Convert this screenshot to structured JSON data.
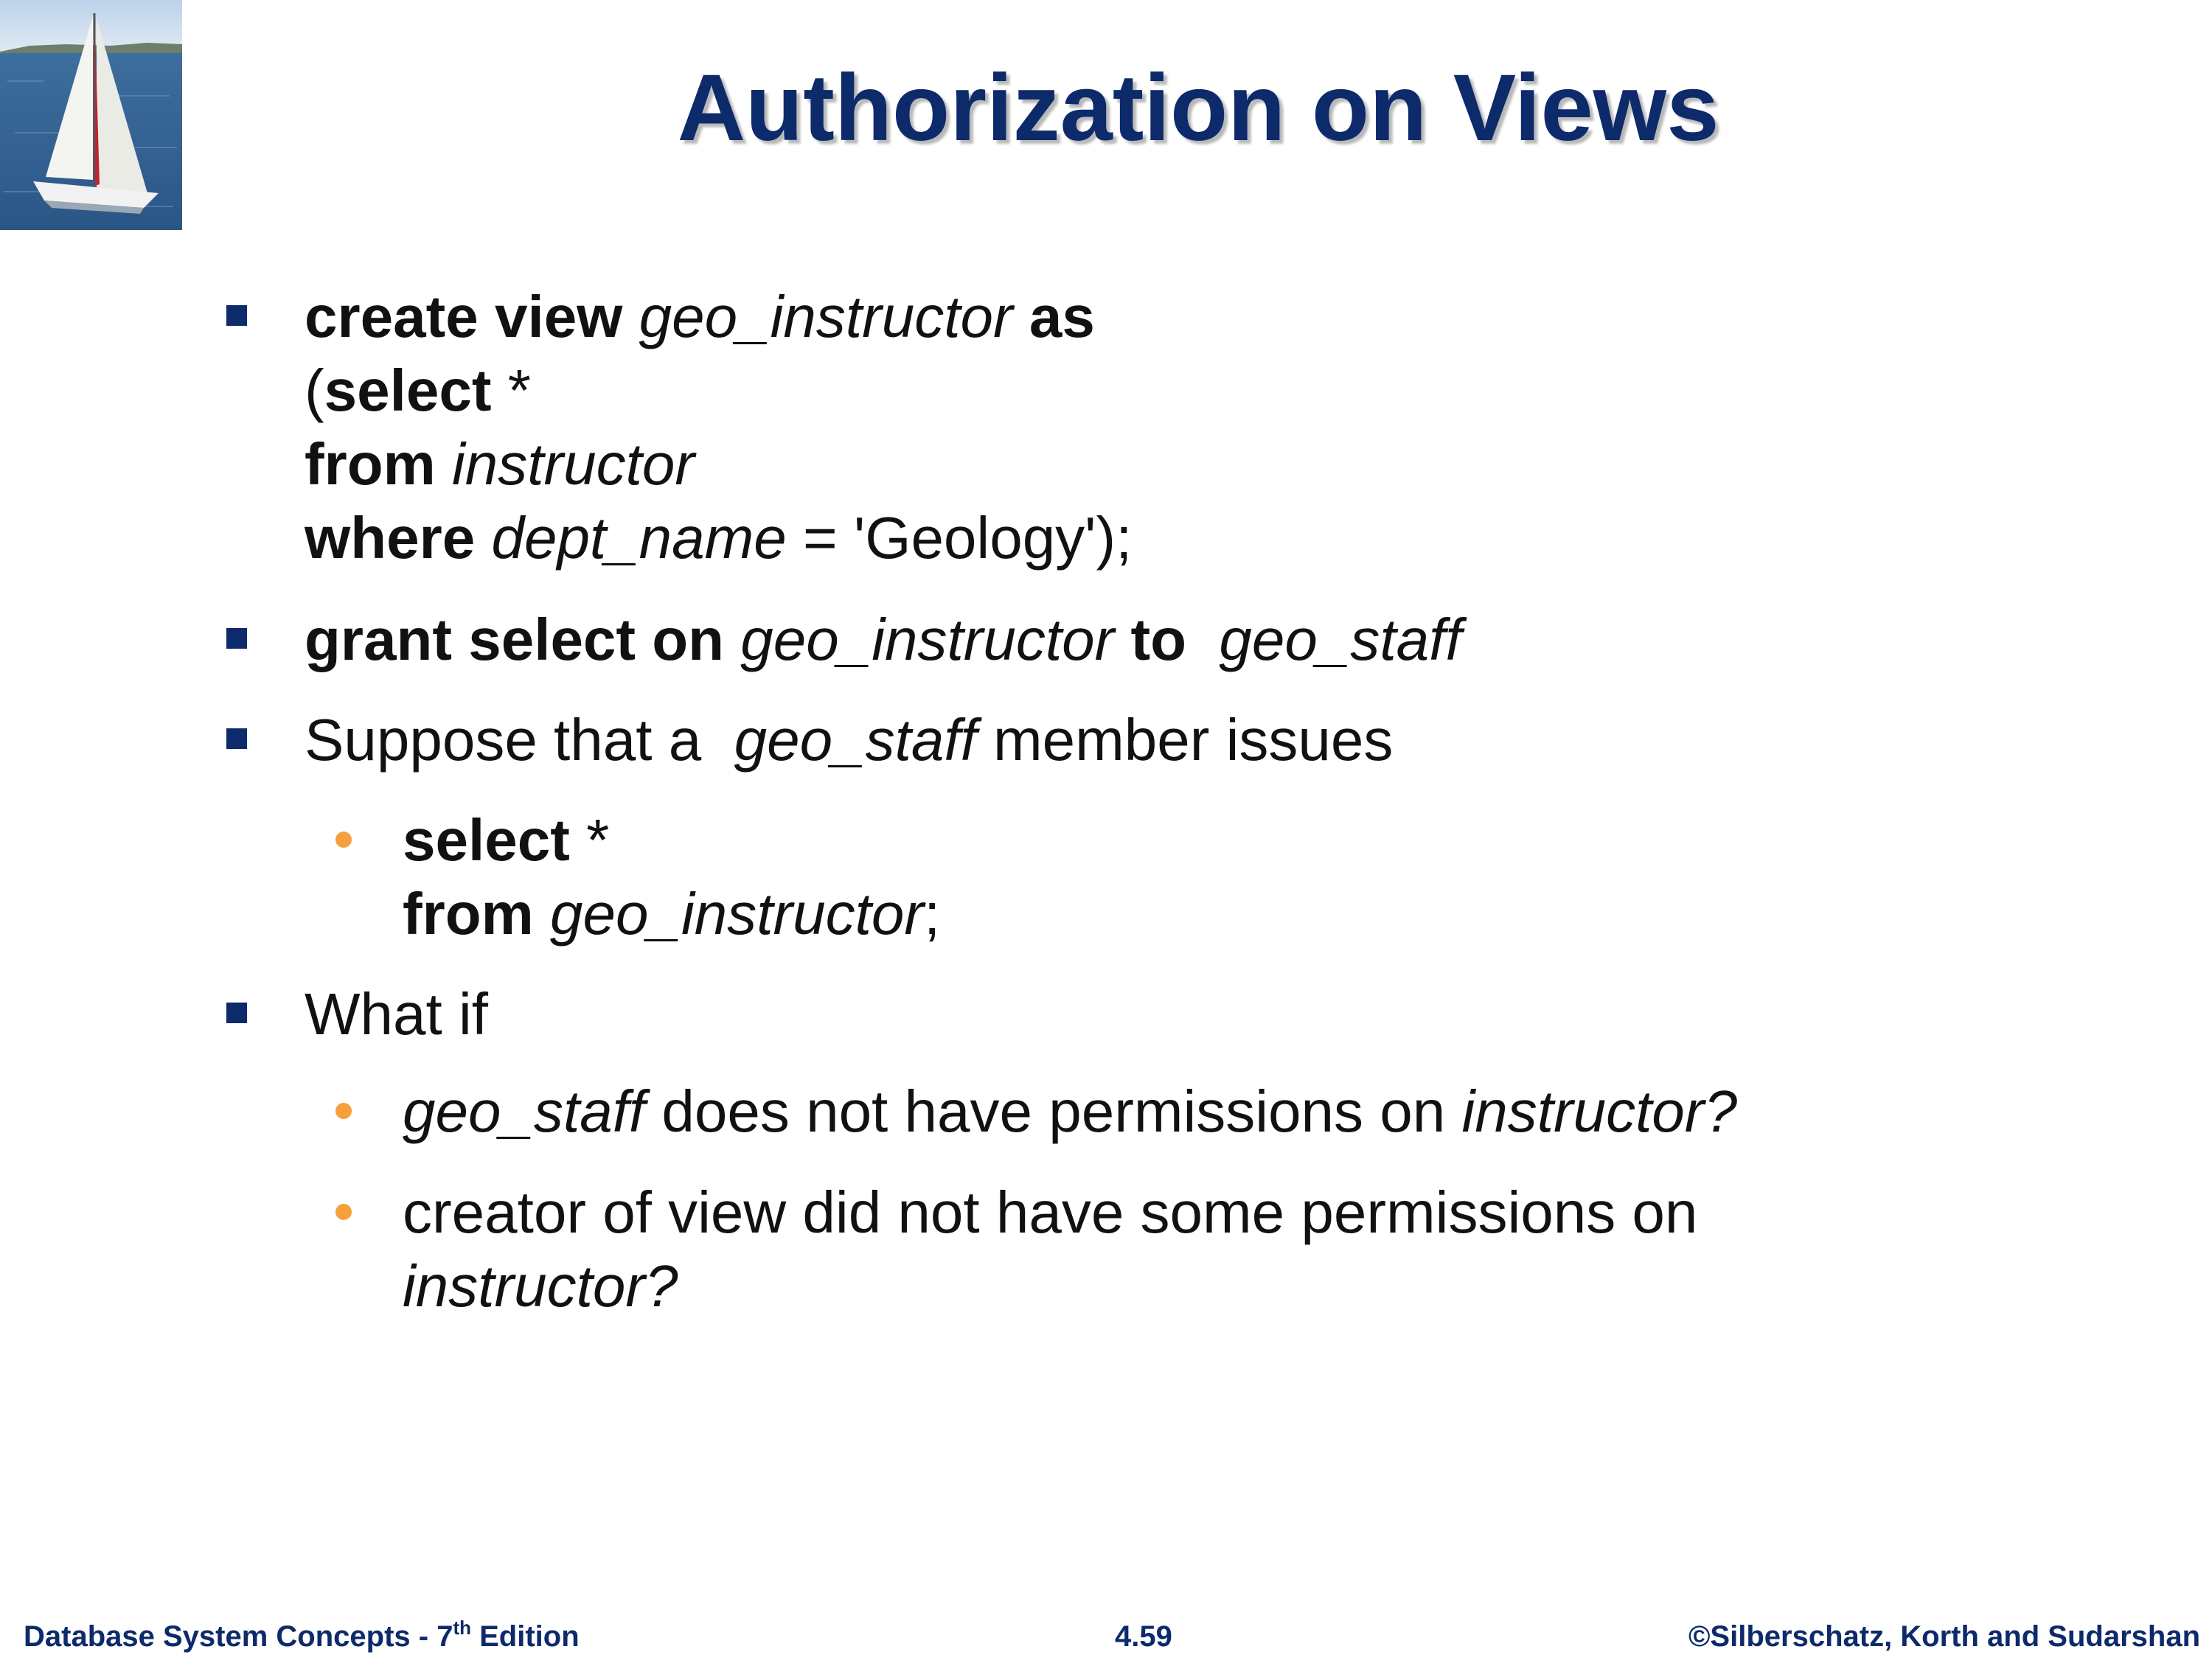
{
  "slide": {
    "title": "Authorization on Views"
  },
  "bullets": {
    "b1": {
      "l1": [
        "create view",
        "geo_instructor",
        "as"
      ],
      "l2": [
        "(",
        "select",
        " *"
      ],
      "l3": [
        "from",
        "instructor"
      ],
      "l4": [
        "where",
        "dept_name",
        " = 'Geology');"
      ]
    },
    "b2": [
      "grant select on",
      "geo_instructor",
      "to",
      "geo_staff"
    ],
    "b3": [
      "Suppose that a",
      "geo_staff",
      " member issues"
    ],
    "b3_sub": {
      "l1": [
        "select",
        " *"
      ],
      "l2": [
        "from",
        "geo_instructor",
        ";"
      ]
    },
    "b4": "What if",
    "b4_sub1": [
      "geo_staff",
      " does not have permissions on ",
      "instructor?"
    ],
    "b4_sub2": {
      "l1": "creator of view did not have some permissions on",
      "l2": "instructor?"
    }
  },
  "footer": {
    "left_text": "Database System Concepts - 7",
    "left_sup": "th",
    "left_suffix": " Edition",
    "center": "4.59",
    "right": "©Silberschatz, Korth and Sudarshan"
  },
  "colors": {
    "title": "#0d2a6b",
    "bullet_square": "#0d2a6b",
    "bullet_dot": "#f5a03c"
  },
  "icons": {
    "logo": "sailboat-logo"
  }
}
